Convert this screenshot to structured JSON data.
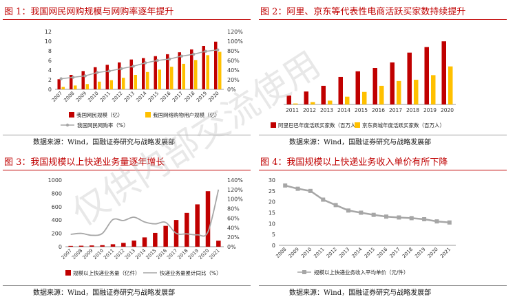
{
  "chart_data": [
    {
      "type": "bar",
      "title": "图 1：我国网民网购规模与网购率逐年提升",
      "categories": [
        "2007",
        "2008",
        "2009",
        "2010",
        "2011",
        "2012",
        "2013",
        "2014",
        "2015",
        "2016",
        "2017",
        "2018",
        "2019",
        "2020"
      ],
      "series": [
        {
          "name": "我国网民规模（亿）",
          "kind": "bar",
          "axis": "left",
          "values": [
            2.1,
            3.0,
            3.8,
            4.6,
            5.1,
            5.6,
            6.2,
            6.5,
            6.9,
            7.3,
            7.7,
            8.3,
            9.0,
            9.9
          ]
        },
        {
          "name": "我国网络购物用户规模（亿）",
          "kind": "bar",
          "axis": "left",
          "values": [
            0.5,
            0.8,
            1.1,
            1.6,
            1.9,
            2.4,
            3.0,
            3.6,
            4.1,
            4.7,
            5.3,
            6.1,
            7.1,
            7.8
          ]
        },
        {
          "name": "我国网民网购率（%）",
          "kind": "line",
          "axis": "right",
          "values": [
            22,
            25,
            28,
            35,
            38,
            43,
            48,
            55,
            60,
            63,
            69,
            73,
            79,
            82
          ]
        }
      ],
      "ylim": [
        0,
        12
      ],
      "yticks": [
        "0",
        "2",
        "4",
        "6",
        "8",
        "10",
        "12"
      ],
      "y2lim": [
        0,
        120
      ],
      "y2ticks": [
        "0%",
        "20%",
        "40%",
        "60%",
        "80%",
        "100%",
        "120%"
      ],
      "colors": [
        "#c00000",
        "#ffc000",
        "#a6a6a6"
      ],
      "source": "数据来源：Wind，国融证券研究与战略发展部"
    },
    {
      "type": "bar",
      "title": "图 2：阿里、京东等代表性电商活跃买家数持续提升",
      "categories": [
        "2011",
        "2012",
        "2013",
        "2014",
        "2015",
        "2016",
        "2017",
        "2018",
        "2019",
        "2020"
      ],
      "series": [
        {
          "name": "阿里巴巴年度活跃买家数（百万人）",
          "values": [
            110,
            160,
            230,
            340,
            410,
            450,
            520,
            640,
            710,
            780
          ]
        },
        {
          "name": "京东商城年度活跃买家数（百万人）",
          "values": [
            12,
            29,
            47,
            96,
            155,
            230,
            290,
            305,
            362,
            470
          ]
        }
      ],
      "ylim": [
        0,
        900
      ],
      "colors": [
        "#c00000",
        "#ffc000"
      ],
      "source": "数据来源：Wind，国融证券研究与战略发展部"
    },
    {
      "type": "bar",
      "title": "图 3：我国规模以上快递业务量逐年增长",
      "categories": [
        "2007",
        "2008",
        "2009",
        "2010",
        "2011",
        "2012",
        "2013",
        "2014",
        "2015",
        "2016",
        "2017",
        "2018",
        "2019",
        "2020",
        "2021"
      ],
      "series": [
        {
          "name": "规模以上快递业务量（亿件）",
          "kind": "bar",
          "axis": "left",
          "values": [
            12,
            15,
            19,
            23,
            37,
            57,
            92,
            140,
            207,
            313,
            401,
            507,
            635,
            833,
            90
          ]
        },
        {
          "name": "快递业务量累计同比（%）",
          "kind": "line",
          "axis": "right",
          "values": [
            26,
            28,
            24,
            28,
            57,
            55,
            62,
            52,
            48,
            51,
            28,
            27,
            25,
            31,
            120
          ]
        }
      ],
      "ylim": [
        0,
        1000
      ],
      "yticks": [
        "0",
        "200",
        "400",
        "600",
        "800",
        "1000"
      ],
      "y2lim": [
        0,
        140
      ],
      "y2ticks": [
        "0%",
        "20%",
        "40%",
        "60%",
        "80%",
        "100%",
        "120%",
        "140%"
      ],
      "colors": [
        "#c00000",
        "#a6a6a6"
      ],
      "source": "数据来源：Wind，国融证券研究与战略发展部"
    },
    {
      "type": "line",
      "title": "图 4：我国规模以上快递业务收入单价有所下降",
      "categories": [
        "2008",
        "2009",
        "2010",
        "2011",
        "2012",
        "2013",
        "2014",
        "2015",
        "2016",
        "2017",
        "2018",
        "2019",
        "2020",
        "2021"
      ],
      "series": [
        {
          "name": "规模以上快递业务收入平均单价（元/件）",
          "values": [
            27.5,
            26.0,
            25.0,
            21.0,
            18.5,
            16.0,
            15.0,
            14.0,
            13.2,
            12.8,
            12.5,
            12.0,
            11.0,
            10.5
          ]
        }
      ],
      "ylim": [
        0,
        30
      ],
      "yticks": [
        "0",
        "5",
        "10",
        "15",
        "20",
        "25",
        "30"
      ],
      "colors": [
        "#a6a6a6"
      ],
      "source": "数据来源：Wind，国融证券研究与战略发展部"
    }
  ],
  "watermark": "仅供内部交流使用",
  "watermark_color": "#bdbdbd"
}
